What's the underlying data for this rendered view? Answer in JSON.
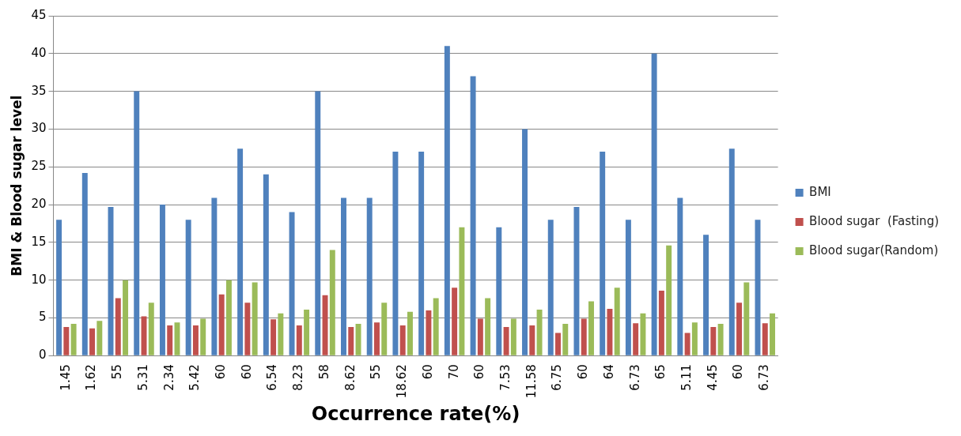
{
  "chart_data": {
    "type": "bar",
    "xlabel": "Occurrence rate(%)",
    "ylabel": "BMI & Blood sugar level",
    "categories": [
      "1.45",
      "1.62",
      "55",
      "5.31",
      "2.34",
      "5.42",
      "60",
      "60",
      "6.54",
      "8.23",
      "58",
      "8.62",
      "55",
      "18.62",
      "60",
      "70",
      "60",
      "7.53",
      "11.58",
      "6.75",
      "60",
      "64",
      "6.73",
      "65",
      "5.11",
      "4.45",
      "60",
      "6.73"
    ],
    "series": [
      {
        "name": "BMI",
        "color": "#4f81bd",
        "values": [
          18,
          24.2,
          19.7,
          35,
          20,
          18,
          20.9,
          27.4,
          24,
          19,
          35,
          20.9,
          20.9,
          27,
          27,
          41,
          37,
          17,
          30,
          18,
          19.7,
          27,
          18,
          40,
          20.9,
          16,
          27.4,
          18
        ]
      },
      {
        "name": "Blood sugar  (Fasting)",
        "color": "#c0504d",
        "values": [
          3.8,
          3.6,
          7.6,
          5.2,
          4,
          4,
          8.1,
          7,
          4.8,
          4,
          8,
          3.8,
          4.4,
          4,
          6,
          9,
          4.9,
          3.8,
          4,
          3,
          4.9,
          6.2,
          4.3,
          8.6,
          3,
          3.8,
          7,
          4.3
        ]
      },
      {
        "name": "Blood sugar(Random)",
        "color": "#9bbb59",
        "values": [
          4.2,
          4.6,
          10,
          7,
          4.4,
          4.9,
          10,
          9.7,
          5.6,
          6.1,
          14,
          4.2,
          7,
          5.8,
          7.6,
          17,
          7.6,
          4.9,
          6.1,
          4.2,
          7.2,
          9,
          5.6,
          14.6,
          4.4,
          4.2,
          9.7,
          5.6
        ]
      }
    ],
    "ylim": [
      0,
      45
    ],
    "yticks": [
      0,
      5,
      10,
      15,
      20,
      25,
      30,
      35,
      40,
      45
    ],
    "grid": "y",
    "legend": "right"
  }
}
